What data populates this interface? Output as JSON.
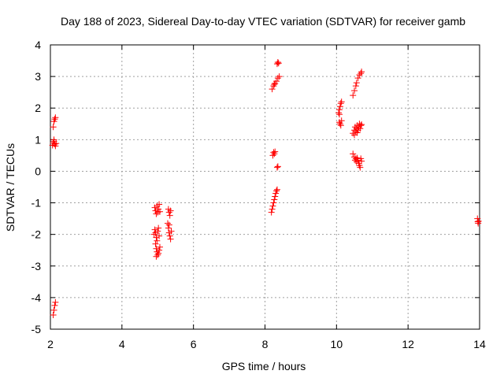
{
  "chart_data": {
    "type": "scatter",
    "title": "Day 188 of 2023, Sidereal Day-to-day VTEC variation (SDTVAR) for receiver gamb",
    "xlabel": "GPS time / hours",
    "ylabel": "SDTVAR / TECUs",
    "xlim": [
      2,
      14
    ],
    "ylim": [
      -5,
      4
    ],
    "xticks": [
      "2",
      "4",
      "6",
      "8",
      "10",
      "12",
      "14"
    ],
    "yticks": [
      "-5",
      "-4",
      "-3",
      "-2",
      "-1",
      "0",
      "1",
      "2",
      "3",
      "4"
    ],
    "grid": true,
    "marker": "+",
    "colors": {
      "points": "#ff0000",
      "grid": "#a0a0a0",
      "axes": "#000000"
    },
    "points": [
      [
        2.08,
        1.4
      ],
      [
        2.1,
        1.58
      ],
      [
        2.12,
        1.65
      ],
      [
        2.14,
        1.7
      ],
      [
        2.06,
        0.82
      ],
      [
        2.08,
        0.9
      ],
      [
        2.1,
        0.95
      ],
      [
        2.12,
        0.86
      ],
      [
        2.14,
        0.8
      ],
      [
        2.1,
        1.0
      ],
      [
        2.16,
        0.88
      ],
      [
        2.08,
        -4.55
      ],
      [
        2.1,
        -4.4
      ],
      [
        2.12,
        -4.25
      ],
      [
        2.14,
        -4.15
      ],
      [
        4.92,
        -1.15
      ],
      [
        4.94,
        -1.25
      ],
      [
        4.96,
        -1.35
      ],
      [
        4.98,
        -1.1
      ],
      [
        5.0,
        -1.3
      ],
      [
        5.02,
        -1.2
      ],
      [
        5.04,
        -1.05
      ],
      [
        5.06,
        -1.28
      ],
      [
        4.9,
        -2.0
      ],
      [
        4.92,
        -1.85
      ],
      [
        4.94,
        -1.95
      ],
      [
        4.96,
        -2.1
      ],
      [
        4.98,
        -2.2
      ],
      [
        5.0,
        -1.9
      ],
      [
        5.02,
        -1.8
      ],
      [
        5.04,
        -2.05
      ],
      [
        4.94,
        -2.3
      ],
      [
        4.96,
        -2.45
      ],
      [
        4.98,
        -2.55
      ],
      [
        5.0,
        -2.65
      ],
      [
        5.02,
        -2.6
      ],
      [
        5.04,
        -2.5
      ],
      [
        5.06,
        -2.4
      ],
      [
        4.96,
        -2.7
      ],
      [
        5.3,
        -1.2
      ],
      [
        5.32,
        -1.3
      ],
      [
        5.34,
        -1.4
      ],
      [
        5.36,
        -1.25
      ],
      [
        5.28,
        -1.65
      ],
      [
        5.3,
        -1.8
      ],
      [
        5.32,
        -1.95
      ],
      [
        5.34,
        -2.05
      ],
      [
        5.36,
        -2.15
      ],
      [
        5.38,
        -1.9
      ],
      [
        5.32,
        -1.7
      ],
      [
        8.2,
        2.6
      ],
      [
        8.24,
        2.7
      ],
      [
        8.28,
        2.78
      ],
      [
        8.32,
        2.85
      ],
      [
        8.36,
        2.95
      ],
      [
        8.4,
        3.0
      ],
      [
        8.26,
        2.75
      ],
      [
        8.34,
        3.4
      ],
      [
        8.36,
        3.45
      ],
      [
        8.38,
        3.42
      ],
      [
        8.22,
        0.5
      ],
      [
        8.24,
        0.6
      ],
      [
        8.26,
        0.55
      ],
      [
        8.28,
        0.62
      ],
      [
        8.34,
        0.12
      ],
      [
        8.36,
        0.15
      ],
      [
        8.18,
        -1.3
      ],
      [
        8.2,
        -1.2
      ],
      [
        8.22,
        -1.1
      ],
      [
        8.24,
        -1.0
      ],
      [
        8.26,
        -0.9
      ],
      [
        8.28,
        -0.8
      ],
      [
        8.3,
        -0.7
      ],
      [
        8.32,
        -0.62
      ],
      [
        8.34,
        -0.58
      ],
      [
        10.06,
        1.85
      ],
      [
        10.08,
        1.95
      ],
      [
        10.1,
        2.05
      ],
      [
        10.12,
        2.15
      ],
      [
        10.14,
        2.2
      ],
      [
        10.08,
        1.8
      ],
      [
        10.08,
        1.55
      ],
      [
        10.1,
        1.5
      ],
      [
        10.12,
        1.45
      ],
      [
        10.14,
        1.6
      ],
      [
        10.46,
        2.4
      ],
      [
        10.5,
        2.55
      ],
      [
        10.54,
        2.7
      ],
      [
        10.56,
        2.8
      ],
      [
        10.6,
        2.95
      ],
      [
        10.64,
        3.05
      ],
      [
        10.68,
        3.1
      ],
      [
        10.7,
        3.15
      ],
      [
        10.46,
        1.2
      ],
      [
        10.5,
        1.3
      ],
      [
        10.52,
        1.4
      ],
      [
        10.54,
        1.25
      ],
      [
        10.56,
        1.35
      ],
      [
        10.58,
        1.45
      ],
      [
        10.6,
        1.3
      ],
      [
        10.62,
        1.4
      ],
      [
        10.64,
        1.5
      ],
      [
        10.66,
        1.35
      ],
      [
        10.68,
        1.45
      ],
      [
        10.7,
        1.48
      ],
      [
        10.5,
        1.15
      ],
      [
        10.58,
        1.22
      ],
      [
        10.46,
        0.55
      ],
      [
        10.5,
        0.45
      ],
      [
        10.52,
        0.35
      ],
      [
        10.54,
        0.4
      ],
      [
        10.56,
        0.3
      ],
      [
        10.58,
        0.42
      ],
      [
        10.6,
        0.35
      ],
      [
        10.62,
        0.25
      ],
      [
        10.64,
        0.18
      ],
      [
        10.66,
        0.12
      ],
      [
        10.68,
        0.4
      ],
      [
        10.7,
        0.32
      ],
      [
        13.94,
        -1.5
      ],
      [
        13.95,
        -1.6
      ],
      [
        13.96,
        -1.65
      ],
      [
        13.97,
        -1.58
      ]
    ]
  }
}
